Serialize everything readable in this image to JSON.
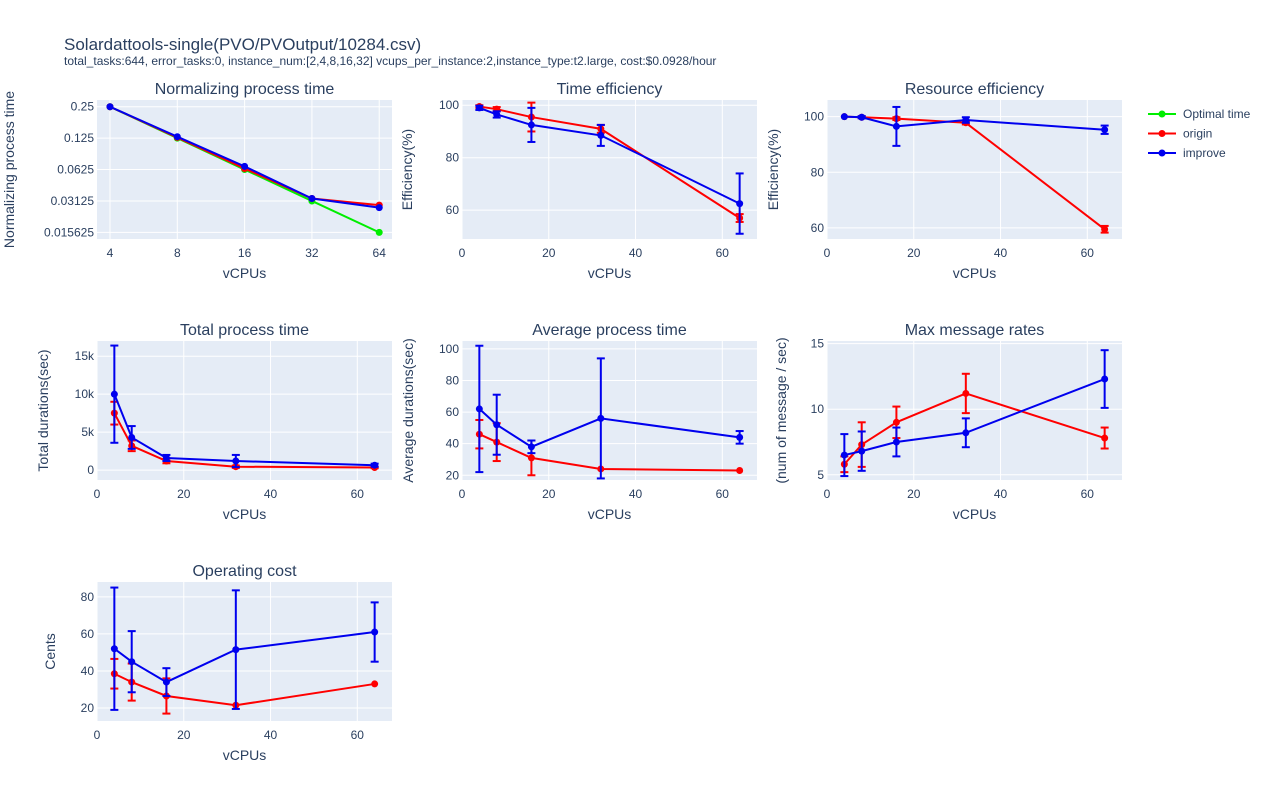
{
  "title": "Solardattools-single(PVO/PVOutput/10284.csv)",
  "subtitle": "total_tasks:644, error_tasks:0, instance_num:[2,4,8,16,32]  vcups_per_instance:2,instance_type:t2.large, cost:$0.0928/hour",
  "legend": {
    "placement": "top-right",
    "items": [
      {
        "name": "Optimal time",
        "color": "#00ee00"
      },
      {
        "name": "origin",
        "color": "#ff0000"
      },
      {
        "name": "improve",
        "color": "#0000ee"
      }
    ]
  },
  "chart_data": [
    {
      "type": "line",
      "title": "Normalizing process time",
      "xlabel": "vCPUs",
      "ylabel": "Normalizing process time",
      "xscale": "log2",
      "yscale": "log2",
      "xlim": [
        3.5,
        73
      ],
      "ylim": [
        0.0135,
        0.29
      ],
      "xticks": [
        4,
        8,
        16,
        32,
        64
      ],
      "xticklabels": [
        "4",
        "8",
        "16",
        "32",
        "64"
      ],
      "yticks": [
        0.015625,
        0.03125,
        0.0625,
        0.125,
        0.25
      ],
      "yticklabels": [
        "0.015625",
        "0.03125",
        "0.0625",
        "0.125",
        "0.25"
      ],
      "grid": true,
      "series": [
        {
          "name": "Optimal time",
          "color": "#00ee00",
          "x": [
            4,
            8,
            16,
            32,
            64
          ],
          "y": [
            0.25,
            0.125,
            0.0625,
            0.03125,
            0.015625
          ]
        },
        {
          "name": "origin",
          "color": "#ff0000",
          "x": [
            4,
            8,
            16,
            32,
            64
          ],
          "y": [
            0.25,
            0.127,
            0.064,
            0.033,
            0.0285
          ]
        },
        {
          "name": "improve",
          "color": "#0000ee",
          "x": [
            4,
            8,
            16,
            32,
            64
          ],
          "y": [
            0.25,
            0.129,
            0.067,
            0.033,
            0.027
          ]
        }
      ]
    },
    {
      "type": "line",
      "title": "Time efficiency",
      "xlabel": "vCPUs",
      "ylabel": "Efficiency(%)",
      "xlim": [
        0,
        68
      ],
      "ylim": [
        49,
        102
      ],
      "xticks": [
        0,
        20,
        40,
        60
      ],
      "yticks": [
        60,
        80,
        100
      ],
      "grid": true,
      "series": [
        {
          "name": "origin",
          "color": "#ff0000",
          "x": [
            4,
            8,
            16,
            32,
            64
          ],
          "y": [
            99.5,
            98.5,
            95.5,
            91,
            57
          ],
          "err": [
            0.5,
            0.8,
            5.5,
            1.5,
            1.5
          ]
        },
        {
          "name": "improve",
          "color": "#0000ee",
          "x": [
            4,
            8,
            16,
            32,
            64
          ],
          "y": [
            99,
            96.5,
            92.5,
            88.5,
            62.5
          ],
          "err": [
            0.8,
            1.2,
            6.5,
            4.0,
            11.5
          ]
        }
      ]
    },
    {
      "type": "line",
      "title": "Resource efficiency",
      "xlabel": "vCPUs",
      "ylabel": "Efficiency(%)",
      "xlim": [
        0,
        68
      ],
      "ylim": [
        56,
        106
      ],
      "xticks": [
        0,
        20,
        40,
        60
      ],
      "yticks": [
        60,
        80,
        100
      ],
      "grid": true,
      "series": [
        {
          "name": "origin",
          "color": "#ff0000",
          "x": [
            4,
            8,
            16,
            32,
            64
          ],
          "y": [
            100,
            99.8,
            99.3,
            97.8,
            59.5
          ],
          "err": [
            0,
            0.3,
            0.5,
            0.6,
            1.2
          ]
        },
        {
          "name": "improve",
          "color": "#0000ee",
          "x": [
            4,
            8,
            16,
            32,
            64
          ],
          "y": [
            100,
            99.8,
            96.5,
            98.8,
            95.3
          ],
          "err": [
            0,
            0.4,
            7.0,
            1.0,
            1.5
          ]
        }
      ]
    },
    {
      "type": "line",
      "title": "Total process time",
      "xlabel": "vCPUs",
      "ylabel": "Total durations(sec)",
      "xlim": [
        0,
        68
      ],
      "ylim": [
        -1300,
        17000
      ],
      "xticks": [
        0,
        20,
        40,
        60
      ],
      "yticks": [
        0,
        5000,
        10000,
        15000
      ],
      "yticklabels": [
        "0",
        "5k",
        "10k",
        "15k"
      ],
      "grid": true,
      "series": [
        {
          "name": "origin",
          "color": "#ff0000",
          "x": [
            4,
            8,
            16,
            32,
            64
          ],
          "y": [
            7500,
            3200,
            1200,
            450,
            350
          ],
          "err": [
            1500,
            700,
            300,
            150,
            100
          ]
        },
        {
          "name": "improve",
          "color": "#0000ee",
          "x": [
            4,
            8,
            16,
            32,
            64
          ],
          "y": [
            10000,
            4300,
            1600,
            1200,
            650
          ],
          "err": [
            6400,
            1500,
            400,
            800,
            200
          ]
        }
      ]
    },
    {
      "type": "line",
      "title": "Average process time",
      "xlabel": "vCPUs",
      "ylabel": "Average durations(sec)",
      "xlim": [
        0,
        68
      ],
      "ylim": [
        17,
        105
      ],
      "xticks": [
        0,
        20,
        40,
        60
      ],
      "yticks": [
        20,
        40,
        60,
        80,
        100
      ],
      "grid": true,
      "series": [
        {
          "name": "origin",
          "color": "#ff0000",
          "x": [
            4,
            8,
            16,
            32,
            64
          ],
          "y": [
            46,
            41,
            31,
            24,
            23
          ],
          "err": [
            9,
            12,
            11,
            0,
            0
          ]
        },
        {
          "name": "improve",
          "color": "#0000ee",
          "x": [
            4,
            8,
            16,
            32,
            64
          ],
          "y": [
            62,
            52,
            38,
            56,
            44
          ],
          "err": [
            40,
            19,
            4,
            38,
            4
          ]
        }
      ]
    },
    {
      "type": "line",
      "title": "Max message rates",
      "xlabel": "vCPUs",
      "ylabel": "(num of message / sec)",
      "xlim": [
        0,
        68
      ],
      "ylim": [
        4.6,
        15.2
      ],
      "xticks": [
        0,
        20,
        40,
        60
      ],
      "yticks": [
        5,
        10,
        15
      ],
      "grid": true,
      "series": [
        {
          "name": "origin",
          "color": "#ff0000",
          "x": [
            4,
            8,
            16,
            32,
            64
          ],
          "y": [
            5.8,
            7.3,
            9.0,
            11.2,
            7.8
          ],
          "err": [
            0.6,
            1.7,
            1.2,
            1.5,
            0.8
          ]
        },
        {
          "name": "improve",
          "color": "#0000ee",
          "x": [
            4,
            8,
            16,
            32,
            64
          ],
          "y": [
            6.5,
            6.8,
            7.5,
            8.2,
            12.3
          ],
          "err": [
            1.6,
            1.5,
            1.1,
            1.1,
            2.2
          ]
        }
      ]
    },
    {
      "type": "line",
      "title": "Operating cost",
      "xlabel": "vCPUs",
      "ylabel": "Cents",
      "xlim": [
        0,
        68
      ],
      "ylim": [
        13,
        88
      ],
      "xticks": [
        0,
        20,
        40,
        60
      ],
      "yticks": [
        20,
        40,
        60,
        80
      ],
      "grid": true,
      "series": [
        {
          "name": "origin",
          "color": "#ff0000",
          "x": [
            4,
            8,
            16,
            32,
            64
          ],
          "y": [
            38.5,
            34,
            26.5,
            21.5,
            33
          ],
          "err": [
            8,
            10,
            9.5,
            0,
            0
          ]
        },
        {
          "name": "improve",
          "color": "#0000ee",
          "x": [
            4,
            8,
            16,
            32,
            64
          ],
          "y": [
            52,
            45,
            34,
            51.5,
            61
          ],
          "err": [
            33,
            16.5,
            7.5,
            32,
            16
          ]
        }
      ]
    }
  ]
}
